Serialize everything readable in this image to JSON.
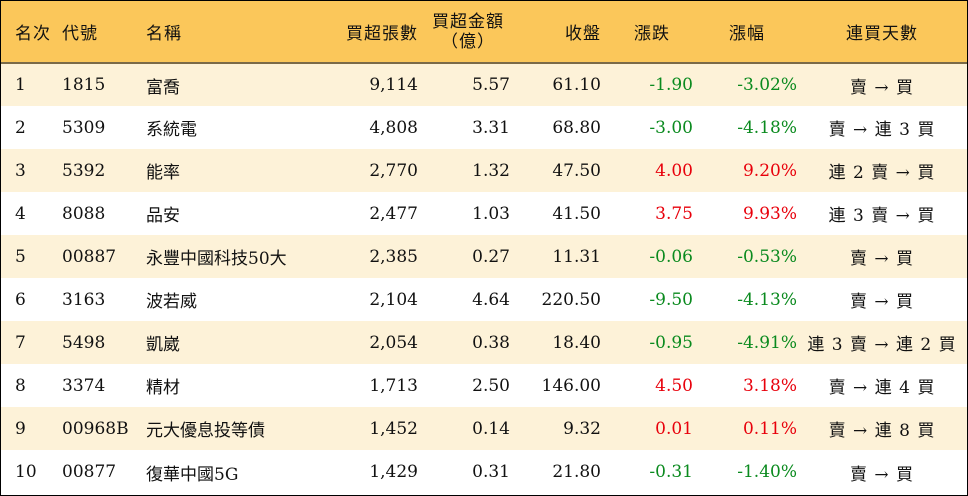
{
  "table": {
    "headers": {
      "rank": "名次",
      "code": "代號",
      "name": "名稱",
      "net_buy_lots": "買超張數",
      "net_buy_amount_line1": "買超金額",
      "net_buy_amount_line2": "（億）",
      "close": "收盤",
      "change": "漲跌",
      "change_pct": "漲幅",
      "streak": "連買天數"
    },
    "rows": [
      {
        "rank": "1",
        "code": "1815",
        "name": "富喬",
        "net_buy_lots": "9,114",
        "net_buy_amount": "5.57",
        "close": "61.10",
        "change": "-1.90",
        "change_pct": "-3.02%",
        "direction": "down",
        "streak": "賣 → 買"
      },
      {
        "rank": "2",
        "code": "5309",
        "name": "系統電",
        "net_buy_lots": "4,808",
        "net_buy_amount": "3.31",
        "close": "68.80",
        "change": "-3.00",
        "change_pct": "-4.18%",
        "direction": "down",
        "streak": "賣 → 連 3 買"
      },
      {
        "rank": "3",
        "code": "5392",
        "name": "能率",
        "net_buy_lots": "2,770",
        "net_buy_amount": "1.32",
        "close": "47.50",
        "change": "4.00",
        "change_pct": "9.20%",
        "direction": "up",
        "streak": "連 2 賣 → 買"
      },
      {
        "rank": "4",
        "code": "8088",
        "name": "品安",
        "net_buy_lots": "2,477",
        "net_buy_amount": "1.03",
        "close": "41.50",
        "change": "3.75",
        "change_pct": "9.93%",
        "direction": "up",
        "streak": "連 3 賣 → 買"
      },
      {
        "rank": "5",
        "code": "00887",
        "name": "永豐中國科技50大",
        "net_buy_lots": "2,385",
        "net_buy_amount": "0.27",
        "close": "11.31",
        "change": "-0.06",
        "change_pct": "-0.53%",
        "direction": "down",
        "streak": "賣 → 買"
      },
      {
        "rank": "6",
        "code": "3163",
        "name": "波若威",
        "net_buy_lots": "2,104",
        "net_buy_amount": "4.64",
        "close": "220.50",
        "change": "-9.50",
        "change_pct": "-4.13%",
        "direction": "down",
        "streak": "賣 → 買"
      },
      {
        "rank": "7",
        "code": "5498",
        "name": "凱崴",
        "net_buy_lots": "2,054",
        "net_buy_amount": "0.38",
        "close": "18.40",
        "change": "-0.95",
        "change_pct": "-4.91%",
        "direction": "down",
        "streak": "連 3 賣 → 連 2 買"
      },
      {
        "rank": "8",
        "code": "3374",
        "name": "精材",
        "net_buy_lots": "1,713",
        "net_buy_amount": "2.50",
        "close": "146.00",
        "change": "4.50",
        "change_pct": "3.18%",
        "direction": "up",
        "streak": "賣 → 連 4 買"
      },
      {
        "rank": "9",
        "code": "00968B",
        "name": "元大優息投等債",
        "net_buy_lots": "1,452",
        "net_buy_amount": "0.14",
        "close": "9.32",
        "change": "0.01",
        "change_pct": "0.11%",
        "direction": "up",
        "streak": "賣 → 連 8 買"
      },
      {
        "rank": "10",
        "code": "00877",
        "name": "復華中國5G",
        "net_buy_lots": "1,429",
        "net_buy_amount": "0.31",
        "close": "21.80",
        "change": "-0.31",
        "change_pct": "-1.40%",
        "direction": "down",
        "streak": "賣 → 買"
      }
    ]
  },
  "colors": {
    "header_bg": "#fbc75a",
    "odd_row_bg": "#fdf2d8",
    "even_row_bg": "#ffffff",
    "up": "#e8000b",
    "down": "#0a8a1e"
  }
}
